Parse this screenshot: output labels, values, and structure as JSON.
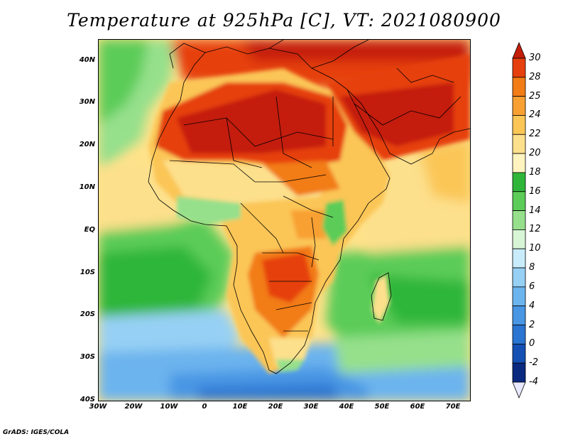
{
  "title": "Temperature at 925hPa [C], VT: 2021080900",
  "credit": "GrADS: IGES/COLA",
  "map": {
    "lat_labels": [
      "40N",
      "30N",
      "20N",
      "10N",
      "EQ",
      "10S",
      "20S",
      "30S",
      "40S"
    ],
    "lon_labels": [
      "30W",
      "20W",
      "10W",
      "0",
      "10E",
      "20E",
      "30E",
      "40E",
      "50E",
      "60E",
      "70E"
    ],
    "lat_range": [
      -40,
      45
    ],
    "lon_range": [
      -30,
      75
    ]
  },
  "colorbar": {
    "labels": [
      "30",
      "28",
      "25",
      "24",
      "22",
      "20",
      "18",
      "16",
      "14",
      "12",
      "10",
      "8",
      "6",
      "4",
      "2",
      "0",
      "-2",
      "-4"
    ],
    "colors": [
      "#c41e0a",
      "#e6400e",
      "#f27c16",
      "#f8a032",
      "#fbc656",
      "#fde08c",
      "#fff4c0",
      "#2fb63a",
      "#5ccc58",
      "#96e08c",
      "#d8f6d6",
      "#c8ecfa",
      "#96d0f4",
      "#6cb4ee",
      "#4896e4",
      "#2a74d2",
      "#1450b4",
      "#0a2a80",
      "#e8e8ff"
    ]
  }
}
